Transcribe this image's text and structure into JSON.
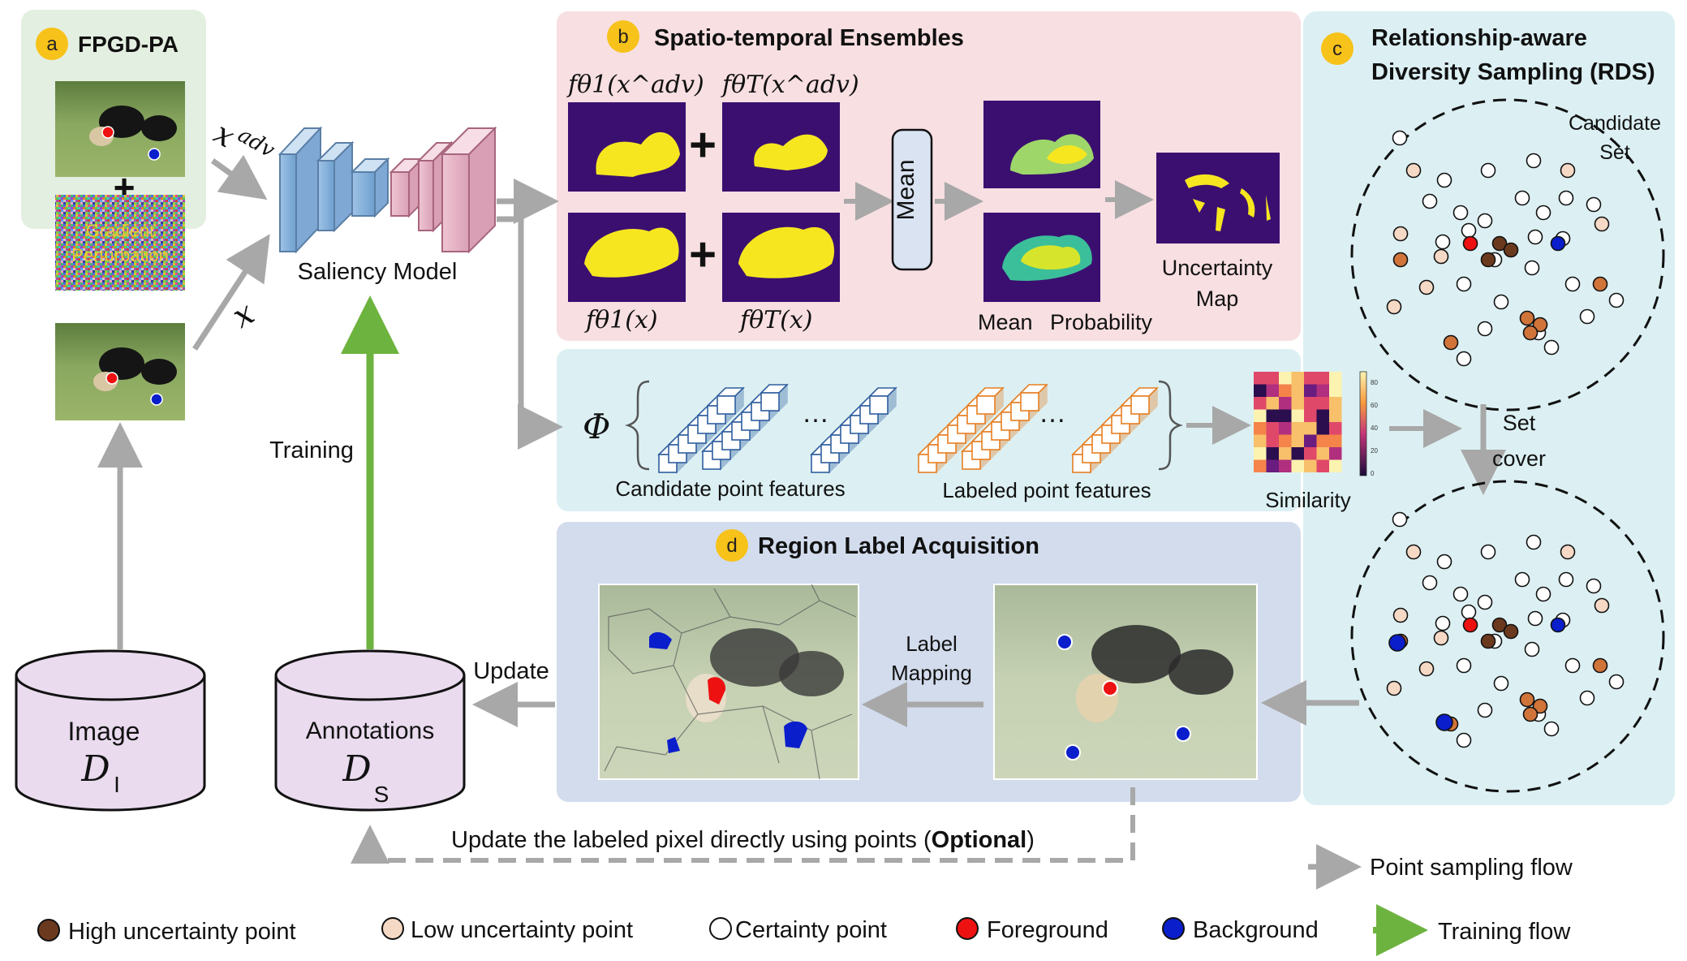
{
  "panel_a": {
    "badge": "a",
    "title": "FPGD-PA",
    "noise_text_1": "Gradient",
    "noise_text_2": "Perturbation"
  },
  "panel_b": {
    "badge": "b",
    "title": "Spatio-temporal Ensembles",
    "label_f1_adv": "fθ1(x^adv)",
    "label_fT_adv": "fθT(x^adv)",
    "label_f1": "fθ1(x)",
    "label_fT": "fθT(x)",
    "mean_box": "Mean",
    "mean_label": "Mean",
    "prob_label": "Probability",
    "uncertainty_1": "Uncertainty",
    "uncertainty_2": "Map"
  },
  "panel_c": {
    "badge": "c",
    "title_1": "Relationship-aware",
    "title_2": "Diversity Sampling (RDS)",
    "candidate_1": "Candidate",
    "candidate_2": "Set",
    "setcover_1": "Set",
    "setcover_2": "cover"
  },
  "panel_feat": {
    "phi": "Φ",
    "dots": "…",
    "candidate_features": "Candidate point features",
    "labeled_features": "Labeled point features",
    "similarity": "Similarity",
    "colorbar_ticks": [
      "80",
      "60",
      "40",
      "20",
      "0"
    ]
  },
  "panel_d": {
    "badge": "d",
    "title": "Region Label Acquisition",
    "label_mapping_1": "Label",
    "label_mapping_2": "Mapping"
  },
  "model": {
    "saliency_label": "Saliency Model",
    "x_adv": "x",
    "x_adv_sup": "adv",
    "x_plain": "x"
  },
  "databases": {
    "image_label": "Image",
    "image_symbol": "D",
    "image_sub": "I",
    "annotations_label": "Annotations",
    "annotations_symbol": "D",
    "annotations_sub": "S"
  },
  "flow_labels": {
    "training": "Training",
    "update": "Update",
    "optional_pre": "Update the labeled pixel directly using points  (",
    "optional_bold": "Optional",
    "optional_post": ")"
  },
  "legend": {
    "point_sampling_flow": "Point sampling flow",
    "high_uncertainty": "High uncertainty point",
    "low_uncertainty": "Low uncertainty point",
    "certainty": "Certainty point",
    "foreground": "Foreground",
    "background": "Background",
    "training_flow": "Training flow"
  },
  "colors": {
    "panel_a_bg": "#e3efe0",
    "panel_b_bg": "#f8dfe2",
    "panel_c_bg": "#dcf0f3",
    "panel_feat_bg": "#dcf0f3",
    "panel_d_bg": "#d2dced",
    "badge": "#f7c21a",
    "high_uncertainty": "#6b3a1e",
    "low_uncertainty": "#f6d9c5",
    "mid_uncertainty": "#d0743a",
    "certainty": "#ffffff",
    "foreground": "#ee1111",
    "background": "#0a1ecc",
    "flow_arrow": "#a8a8a8",
    "training_arrow": "#6db33f",
    "db_fill": "#eadbef",
    "candidate_cube": "#2f5e9e",
    "labeled_cube": "#e67e22"
  }
}
